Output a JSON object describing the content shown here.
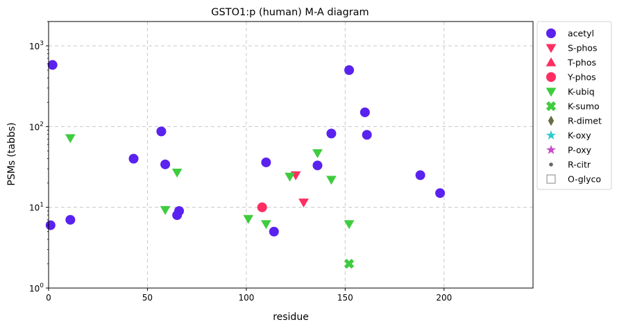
{
  "chart_data": {
    "type": "scatter",
    "title": "GSTO1:p (human) M-A diagram",
    "xlabel": "residue",
    "ylabel": "PSMs (tabbs)",
    "xlim": [
      0,
      245
    ],
    "ylim": [
      1,
      2000
    ],
    "yscale": "log",
    "x_ticks": [
      0,
      50,
      100,
      150,
      200
    ],
    "y_ticks": [
      {
        "value": 1,
        "base": "10",
        "exp": "0"
      },
      {
        "value": 10,
        "base": "10",
        "exp": "1"
      },
      {
        "value": 100,
        "base": "10",
        "exp": "2"
      },
      {
        "value": 1000,
        "base": "10",
        "exp": "3"
      }
    ],
    "grid": true,
    "legend_position": "outside-right",
    "series": [
      {
        "name": "acetyl",
        "marker": "circle",
        "color": "#5a22ee",
        "points": [
          [
            1,
            6
          ],
          [
            2,
            580
          ],
          [
            11,
            7
          ],
          [
            43,
            40
          ],
          [
            57,
            87
          ],
          [
            59,
            34
          ],
          [
            65,
            8
          ],
          [
            66,
            9
          ],
          [
            110,
            36
          ],
          [
            114,
            5
          ],
          [
            136,
            33
          ],
          [
            143,
            82
          ],
          [
            152,
            500
          ],
          [
            160,
            150
          ],
          [
            161,
            79
          ],
          [
            188,
            25
          ],
          [
            198,
            15
          ]
        ]
      },
      {
        "name": "S-phos",
        "marker": "triangle-down",
        "color": "#ff2d62",
        "points": [
          [
            125,
            25
          ],
          [
            129,
            11.5
          ]
        ]
      },
      {
        "name": "T-phos",
        "marker": "triangle-up",
        "color": "#ff2d62",
        "points": []
      },
      {
        "name": "Y-phos",
        "marker": "circle",
        "color": "#ff2d62",
        "points": [
          [
            108,
            10
          ]
        ]
      },
      {
        "name": "K-ubiq",
        "marker": "triangle-down",
        "color": "#3ecc3e",
        "points": [
          [
            11,
            72
          ],
          [
            59,
            9.3
          ],
          [
            65,
            27
          ],
          [
            101,
            7.2
          ],
          [
            110,
            6.2
          ],
          [
            122,
            24
          ],
          [
            136,
            47
          ],
          [
            143,
            22
          ],
          [
            152,
            6.2
          ]
        ]
      },
      {
        "name": "K-sumo",
        "marker": "x",
        "color": "#3ecc3e",
        "points": [
          [
            152,
            2
          ]
        ]
      },
      {
        "name": "R-dimet",
        "marker": "diamond",
        "color": "#6b6b45",
        "points": []
      },
      {
        "name": "K-oxy",
        "marker": "star",
        "color": "#2ec8d0",
        "points": []
      },
      {
        "name": "P-oxy",
        "marker": "star",
        "color": "#c84bc8",
        "points": []
      },
      {
        "name": "R-citr",
        "marker": "small-circle",
        "color": "#666666",
        "points": []
      },
      {
        "name": "O-glyco",
        "marker": "square-open",
        "color": "#999999",
        "points": []
      }
    ]
  }
}
